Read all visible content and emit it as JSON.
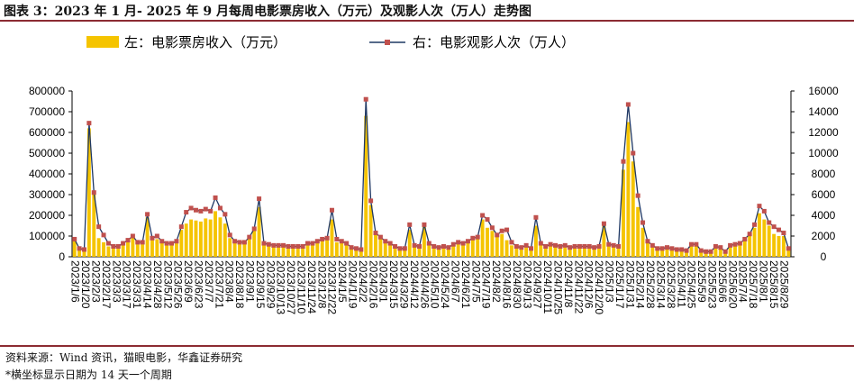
{
  "title": "图表 3：2023 年 1 月- 2025 年 9 月每周电影票房收入（万元）及观影人次（万人）走势图",
  "source": "资料来源：Wind 资讯，猫眼电影，华鑫证券研究",
  "note": "*横坐标显示日期为 14 天一个周期",
  "colors": {
    "bar": "#f5c400",
    "line": "#1f3864",
    "marker": "#c0504d",
    "rule": "#8c2b32"
  },
  "chart_data": {
    "type": "bar+line",
    "legend_position": "top",
    "grid": false,
    "y_left": {
      "min": 0,
      "max": 800000,
      "step": 100000,
      "ticks": [
        "0",
        "100000",
        "200000",
        "300000",
        "400000",
        "500000",
        "600000",
        "700000",
        "800000"
      ]
    },
    "y_right": {
      "min": 0,
      "max": 16000,
      "step": 2000,
      "ticks": [
        "0",
        "2000",
        "4000",
        "6000",
        "8000",
        "10000",
        "12000",
        "14000",
        "16000"
      ]
    },
    "x_tick_labels": [
      "2023/1/6",
      "2023/1/20",
      "2023/2/3",
      "2023/2/17",
      "2023/3/3",
      "2023/3/17",
      "2023/3/31",
      "2023/4/14",
      "2023/4/28",
      "2023/5/12",
      "2023/5/26",
      "2023/6/9",
      "2023/6/23",
      "2023/7/7",
      "2023/7/21",
      "2023/8/4",
      "2023/8/18",
      "2023/9/1",
      "2023/9/15",
      "2023/9/29",
      "2023/10/13",
      "2023/10/27",
      "2023/11/10",
      "2023/11/24",
      "2023/12/8",
      "2023/12/22",
      "2024/1/5",
      "2024/1/19",
      "2024/2/2",
      "2024/2/16",
      "2024/3/1",
      "2024/3/15",
      "2024/3/29",
      "2024/4/12",
      "2024/4/26",
      "2024/5/10",
      "2024/5/24",
      "2024/6/7",
      "2024/6/21",
      "2024/7/5",
      "2024/7/19",
      "2024/8/2",
      "2024/8/16",
      "2024/8/30",
      "2024/9/13",
      "2024/9/27",
      "2024/10/11",
      "2024/10/25",
      "2024/11/8",
      "2024/11/22",
      "2024/12/6",
      "2024/12/20",
      "2025/1/3",
      "2025/1/17",
      "2025/1/31",
      "2025/2/14",
      "2025/2/28",
      "2025/3/14",
      "2025/3/28",
      "2025/4/11",
      "2025/4/25",
      "2025/5/9",
      "2025/5/23",
      "2025/6/6",
      "2025/6/20",
      "2025/7/4",
      "2025/7/18",
      "2025/8/1",
      "2025/8/15",
      "2025/8/29"
    ],
    "series": [
      {
        "name": "左：电影票房收入（万元）",
        "type": "bar",
        "axis": "left",
        "values": [
          80000,
          35000,
          30000,
          620000,
          300000,
          90000,
          70000,
          50000,
          45000,
          45000,
          55000,
          70000,
          90000,
          60000,
          60000,
          190000,
          80000,
          85000,
          70000,
          60000,
          55000,
          65000,
          130000,
          160000,
          180000,
          175000,
          170000,
          185000,
          180000,
          220000,
          190000,
          160000,
          90000,
          70000,
          60000,
          65000,
          90000,
          130000,
          240000,
          60000,
          55000,
          55000,
          50000,
          50000,
          50000,
          45000,
          45000,
          45000,
          60000,
          60000,
          70000,
          80000,
          90000,
          180000,
          70000,
          65000,
          55000,
          40000,
          35000,
          30000,
          680000,
          250000,
          110000,
          90000,
          70000,
          60000,
          45000,
          35000,
          35000,
          130000,
          50000,
          45000,
          150000,
          60000,
          45000,
          40000,
          45000,
          40000,
          55000,
          65000,
          60000,
          70000,
          85000,
          90000,
          180000,
          140000,
          125000,
          100000,
          110000,
          80000,
          55000,
          45000,
          40000,
          50000,
          35000,
          150000,
          55000,
          45000,
          55000,
          50000,
          45000,
          45000,
          40000,
          50000,
          45000,
          45000,
          45000,
          45000,
          50000,
          160000,
          55000,
          50000,
          45000,
          420000,
          650000,
          460000,
          240000,
          140000,
          70000,
          50000,
          35000,
          35000,
          40000,
          35000,
          30000,
          30000,
          25000,
          55000,
          50000,
          25000,
          20000,
          25000,
          45000,
          40000,
          25000,
          45000,
          50000,
          55000,
          80000,
          100000,
          140000,
          210000,
          180000,
          150000,
          110000,
          100000,
          100000,
          40000
        ]
      },
      {
        "name": "右：电影观影人次（万人）",
        "type": "line",
        "axis": "right",
        "values": [
          1700,
          800,
          700,
          12900,
          6200,
          2900,
          2100,
          1300,
          1000,
          1000,
          1300,
          1600,
          2000,
          1400,
          1400,
          4100,
          1800,
          2000,
          1500,
          1300,
          1300,
          1500,
          2900,
          4300,
          4700,
          4500,
          4400,
          4600,
          4400,
          5700,
          4700,
          4100,
          2100,
          1500,
          1400,
          1400,
          1900,
          2700,
          5600,
          1300,
          1200,
          1100,
          1100,
          1100,
          1000,
          1000,
          1000,
          1000,
          1300,
          1300,
          1500,
          1700,
          1800,
          4500,
          1700,
          1500,
          1300,
          900,
          800,
          700,
          15200,
          5400,
          2300,
          1900,
          1500,
          1300,
          1000,
          800,
          800,
          3100,
          1100,
          1000,
          3100,
          1300,
          1000,
          900,
          1000,
          900,
          1200,
          1400,
          1300,
          1500,
          1800,
          1900,
          4000,
          3600,
          2800,
          2100,
          2500,
          2600,
          1400,
          1000,
          900,
          1100,
          800,
          3800,
          1300,
          1000,
          1200,
          1100,
          1000,
          1100,
          900,
          1000,
          1000,
          1000,
          1000,
          900,
          1000,
          3200,
          1200,
          1100,
          1000,
          9200,
          14700,
          10000,
          5900,
          3300,
          1500,
          1100,
          800,
          800,
          900,
          800,
          700,
          700,
          600,
          1200,
          1200,
          600,
          500,
          500,
          1000,
          900,
          500,
          1100,
          1200,
          1300,
          1700,
          2200,
          3100,
          4900,
          4400,
          3300,
          2900,
          2600,
          2300,
          800
        ]
      }
    ]
  }
}
